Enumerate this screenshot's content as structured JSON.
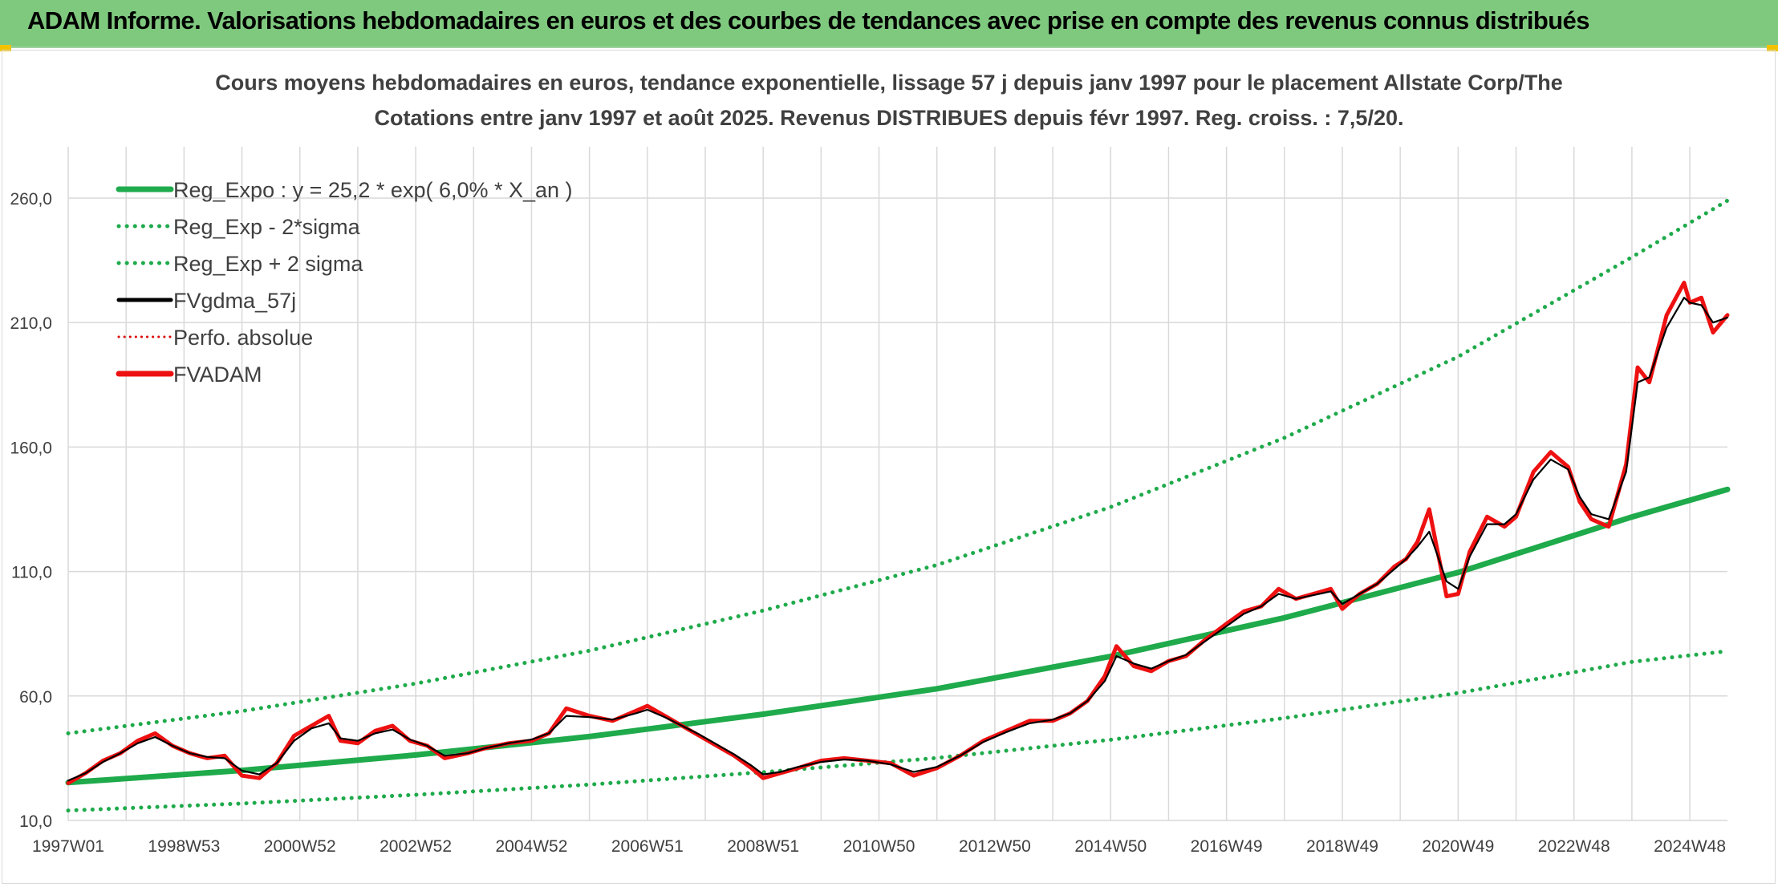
{
  "header": {
    "title": "ADAM Informe. Valorisations hebdomadaires en euros et des courbes de tendances avec prise en compte des revenus connus distribués"
  },
  "colors": {
    "header_bg": "#7fc97f",
    "reg_expo": "#1faa4b",
    "fvgdma": "#000000",
    "fvadam": "#ee1111",
    "perfo": "#dd0000"
  },
  "chart_data": {
    "type": "line",
    "title_line1": "Cours moyens hebdomadaires en euros, tendance exponentielle, lissage 57 j depuis janv 1997 pour le placement Allstate Corp/The",
    "title_line2": "Cotations entre janv 1997 et août 2025. Revenus DISTRIBUES depuis févr 1997. Reg. croiss. : 7,5/20.",
    "ylim": [
      10,
      270
    ],
    "y_ticks": [
      10,
      60,
      110,
      160,
      210,
      260
    ],
    "y_tick_labels": [
      "10,0",
      "60,0",
      "110,0",
      "160,0",
      "210,0",
      "260,0"
    ],
    "x_range": [
      1997.0,
      2025.65
    ],
    "x_ticks": [
      {
        "label": "1997W01",
        "x": 1997.0
      },
      {
        "label": "1998W53",
        "x": 1999.0
      },
      {
        "label": "2000W52",
        "x": 2001.0
      },
      {
        "label": "2002W52",
        "x": 2003.0
      },
      {
        "label": "2004W52",
        "x": 2005.0
      },
      {
        "label": "2006W51",
        "x": 2007.0
      },
      {
        "label": "2008W51",
        "x": 2009.0
      },
      {
        "label": "2010W50",
        "x": 2011.0
      },
      {
        "label": "2012W50",
        "x": 2013.0
      },
      {
        "label": "2014W50",
        "x": 2015.0
      },
      {
        "label": "2016W49",
        "x": 2017.0
      },
      {
        "label": "2018W49",
        "x": 2019.0
      },
      {
        "label": "2020W49",
        "x": 2021.0
      },
      {
        "label": "2022W48",
        "x": 2023.0
      },
      {
        "label": "2024W48",
        "x": 2025.0
      }
    ],
    "legend": [
      {
        "key": "reg_expo",
        "label": "Reg_Expo : y = 25,2 * exp( 6,0% *  X_an )",
        "style": "solid",
        "color": "#1faa4b"
      },
      {
        "key": "reg_minus",
        "label": "Reg_Exp - 2*sigma",
        "style": "dotted",
        "color": "#1faa4b"
      },
      {
        "key": "reg_plus",
        "label": "Reg_Exp + 2 sigma",
        "style": "dotted",
        "color": "#1faa4b"
      },
      {
        "key": "fvgdma",
        "label": "FVgdma_57j",
        "style": "solid",
        "color": "#000000"
      },
      {
        "key": "perfo",
        "label": "Perfo. absolue",
        "style": "dotted",
        "color": "#dd0000"
      },
      {
        "key": "fvadam",
        "label": "FVADAM",
        "style": "solid",
        "color": "#ee1111"
      }
    ],
    "series": [
      {
        "key": "reg_expo",
        "x": [
          1997.0,
          2000.0,
          2003.0,
          2006.0,
          2009.0,
          2012.0,
          2015.0,
          2018.0,
          2021.0,
          2024.0,
          2025.65
        ],
        "values": [
          25.2,
          30.1,
          36.3,
          43.7,
          52.7,
          62.9,
          75.9,
          91.4,
          109.6,
          131.9,
          143.0
        ]
      },
      {
        "key": "reg_minus",
        "x": [
          1997.0,
          2000.0,
          2003.0,
          2006.0,
          2009.0,
          2012.0,
          2015.0,
          2018.0,
          2021.0,
          2024.0,
          2025.65
        ],
        "values": [
          14.0,
          16.8,
          20.3,
          24.4,
          29.4,
          35.1,
          42.4,
          51.1,
          61.2,
          73.7,
          78.0
        ]
      },
      {
        "key": "reg_plus",
        "x": [
          1997.0,
          2000.0,
          2003.0,
          2006.0,
          2009.0,
          2012.0,
          2015.0,
          2018.0,
          2021.0,
          2024.0,
          2025.65
        ],
        "values": [
          45.0,
          53.9,
          65.0,
          78.2,
          94.3,
          112.6,
          135.9,
          163.7,
          196.3,
          236.3,
          259.0
        ]
      },
      {
        "key": "fvadam",
        "x": [
          1997.0,
          1997.3,
          1997.6,
          1997.9,
          1998.2,
          1998.5,
          1998.8,
          1999.1,
          1999.4,
          1999.7,
          2000.0,
          2000.3,
          2000.6,
          2000.9,
          2001.2,
          2001.5,
          2001.7,
          2002.0,
          2002.3,
          2002.6,
          2002.9,
          2003.2,
          2003.5,
          2003.9,
          2004.2,
          2004.6,
          2005.0,
          2005.3,
          2005.6,
          2006.0,
          2006.4,
          2006.8,
          2007.0,
          2007.3,
          2007.6,
          2007.9,
          2008.2,
          2008.5,
          2008.8,
          2009.0,
          2009.3,
          2009.6,
          2010.0,
          2010.4,
          2010.8,
          2011.2,
          2011.6,
          2012.0,
          2012.4,
          2012.8,
          2013.2,
          2013.6,
          2014.0,
          2014.3,
          2014.6,
          2014.9,
          2015.1,
          2015.4,
          2015.7,
          2016.0,
          2016.3,
          2016.6,
          2017.0,
          2017.3,
          2017.6,
          2017.9,
          2018.2,
          2018.5,
          2018.8,
          2019.0,
          2019.3,
          2019.6,
          2019.9,
          2020.1,
          2020.3,
          2020.5,
          2020.8,
          2021.0,
          2021.2,
          2021.5,
          2021.8,
          2022.0,
          2022.3,
          2022.6,
          2022.9,
          2023.1,
          2023.3,
          2023.6,
          2023.9,
          2024.1,
          2024.3,
          2024.6,
          2024.9,
          2025.0,
          2025.2,
          2025.4,
          2025.65
        ],
        "values": [
          25.0,
          29.0,
          34.0,
          37.0,
          42.0,
          45.0,
          40.0,
          37.0,
          35.0,
          36.0,
          28.0,
          27.0,
          33.0,
          44.0,
          48.0,
          52.0,
          42.0,
          41.0,
          46.0,
          48.0,
          42.0,
          40.0,
          35.0,
          37.0,
          39.0,
          41.0,
          42.0,
          45.0,
          55.0,
          52.0,
          50.0,
          54.0,
          56.0,
          52.0,
          48.0,
          44.0,
          40.0,
          36.0,
          31.0,
          27.0,
          29.0,
          31.0,
          34.0,
          35.0,
          34.0,
          33.0,
          28.0,
          31.0,
          36.0,
          42.0,
          46.0,
          50.0,
          50.0,
          53.0,
          58.0,
          68.0,
          80.0,
          72.0,
          70.0,
          74.0,
          76.0,
          82.0,
          89.0,
          94.0,
          96.0,
          103.0,
          99.0,
          101.0,
          103.0,
          95.0,
          101.0,
          105.0,
          112.0,
          115.0,
          122.0,
          135.0,
          100.0,
          101.0,
          118.0,
          132.0,
          128.0,
          132.0,
          150.0,
          158.0,
          152.0,
          138.0,
          131.0,
          128.0,
          153.0,
          192.0,
          186.0,
          213.0,
          226.0,
          218.0,
          220.0,
          206.0,
          213.0
        ]
      },
      {
        "key": "fvgdma",
        "x": [
          1997.0,
          1997.3,
          1997.6,
          1997.9,
          1998.2,
          1998.5,
          1998.8,
          1999.1,
          1999.4,
          1999.7,
          2000.0,
          2000.3,
          2000.6,
          2000.9,
          2001.2,
          2001.5,
          2001.7,
          2002.0,
          2002.3,
          2002.6,
          2002.9,
          2003.2,
          2003.5,
          2003.9,
          2004.2,
          2004.6,
          2005.0,
          2005.3,
          2005.6,
          2006.0,
          2006.4,
          2006.8,
          2007.0,
          2007.3,
          2007.6,
          2007.9,
          2008.2,
          2008.5,
          2008.8,
          2009.0,
          2009.3,
          2009.6,
          2010.0,
          2010.4,
          2010.8,
          2011.2,
          2011.6,
          2012.0,
          2012.4,
          2012.8,
          2013.2,
          2013.6,
          2014.0,
          2014.3,
          2014.6,
          2014.9,
          2015.1,
          2015.4,
          2015.7,
          2016.0,
          2016.3,
          2016.6,
          2017.0,
          2017.3,
          2017.6,
          2017.9,
          2018.2,
          2018.5,
          2018.8,
          2019.0,
          2019.3,
          2019.6,
          2019.9,
          2020.1,
          2020.3,
          2020.5,
          2020.8,
          2021.0,
          2021.2,
          2021.5,
          2021.8,
          2022.0,
          2022.3,
          2022.6,
          2022.9,
          2023.1,
          2023.3,
          2023.6,
          2023.9,
          2024.1,
          2024.3,
          2024.6,
          2024.9,
          2025.0,
          2025.2,
          2025.4,
          2025.65
        ],
        "values": [
          26.0,
          29.0,
          33.5,
          37.0,
          41.0,
          43.5,
          40.0,
          37.0,
          35.5,
          35.0,
          30.0,
          28.5,
          33.0,
          42.0,
          47.0,
          49.0,
          43.0,
          42.0,
          45.0,
          46.5,
          42.5,
          40.0,
          36.0,
          37.0,
          39.0,
          41.0,
          42.5,
          45.0,
          52.0,
          51.5,
          50.5,
          53.0,
          54.5,
          51.5,
          48.0,
          44.5,
          40.5,
          36.5,
          32.0,
          28.5,
          29.5,
          31.5,
          33.5,
          34.5,
          34.0,
          32.5,
          29.5,
          31.5,
          36.0,
          41.5,
          45.5,
          49.0,
          50.5,
          53.0,
          58.0,
          66.0,
          76.0,
          73.0,
          71.0,
          74.0,
          76.5,
          81.5,
          88.0,
          93.0,
          96.0,
          101.0,
          99.0,
          100.5,
          102.0,
          97.0,
          101.0,
          105.0,
          111.0,
          115.0,
          120.0,
          126.0,
          106.0,
          103.0,
          116.0,
          129.0,
          129.0,
          133.0,
          147.0,
          155.0,
          151.0,
          140.0,
          133.0,
          131.0,
          150.0,
          186.0,
          188.0,
          208.0,
          220.0,
          218.0,
          217.0,
          210.0,
          212.0
        ]
      }
    ]
  }
}
